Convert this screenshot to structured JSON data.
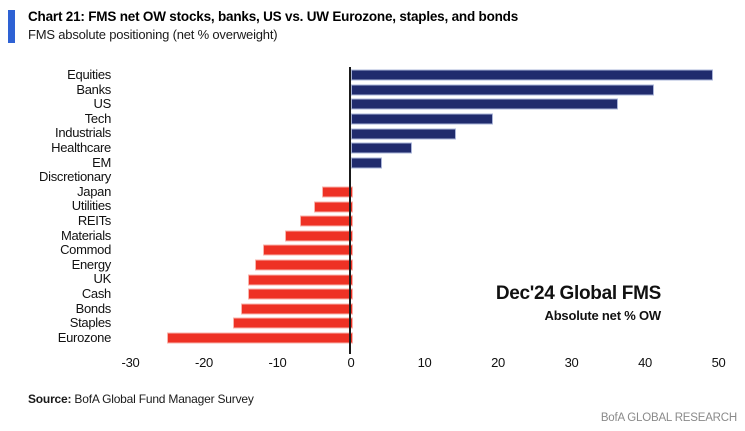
{
  "header": {
    "title": "Chart 21: FMS net OW stocks, banks, US vs. UW Eurozone, staples, and bonds",
    "subtitle": "FMS absolute positioning (net % overweight)"
  },
  "chart_data": {
    "type": "bar",
    "orientation": "horizontal",
    "title": "Chart 21: FMS net OW stocks, banks, US vs. UW Eurozone, staples, and bonds",
    "subtitle": "FMS absolute positioning (net % overweight)",
    "categories": [
      "Equities",
      "Banks",
      "US",
      "Tech",
      "Industrials",
      "Healthcare",
      "EM",
      "Discretionary",
      "Japan",
      "Utilities",
      "REITs",
      "Materials",
      "Commod",
      "Energy",
      "UK",
      "Cash",
      "Bonds",
      "Staples",
      "Eurozone"
    ],
    "values": [
      49,
      41,
      36,
      19,
      14,
      8,
      4,
      0,
      -4,
      -5,
      -7,
      -9,
      -12,
      -13,
      -14,
      -14,
      -15,
      -16,
      -25
    ],
    "xlabel": "",
    "ylabel": "",
    "xticks": [
      -30,
      -20,
      -10,
      0,
      10,
      20,
      30,
      40,
      50
    ],
    "xlim": [
      -32,
      53
    ],
    "grid": false,
    "zero_axis_line": true,
    "positive_color": "#202b6d",
    "negative_color": "#ee3124",
    "annotation": {
      "line1": "Dec'24 Global FMS",
      "line2": "Absolute net % OW"
    }
  },
  "footer": {
    "source_label": "Source:",
    "source_text": " BofA Global Fund Manager Survey",
    "brand": "BofA GLOBAL RESEARCH"
  }
}
